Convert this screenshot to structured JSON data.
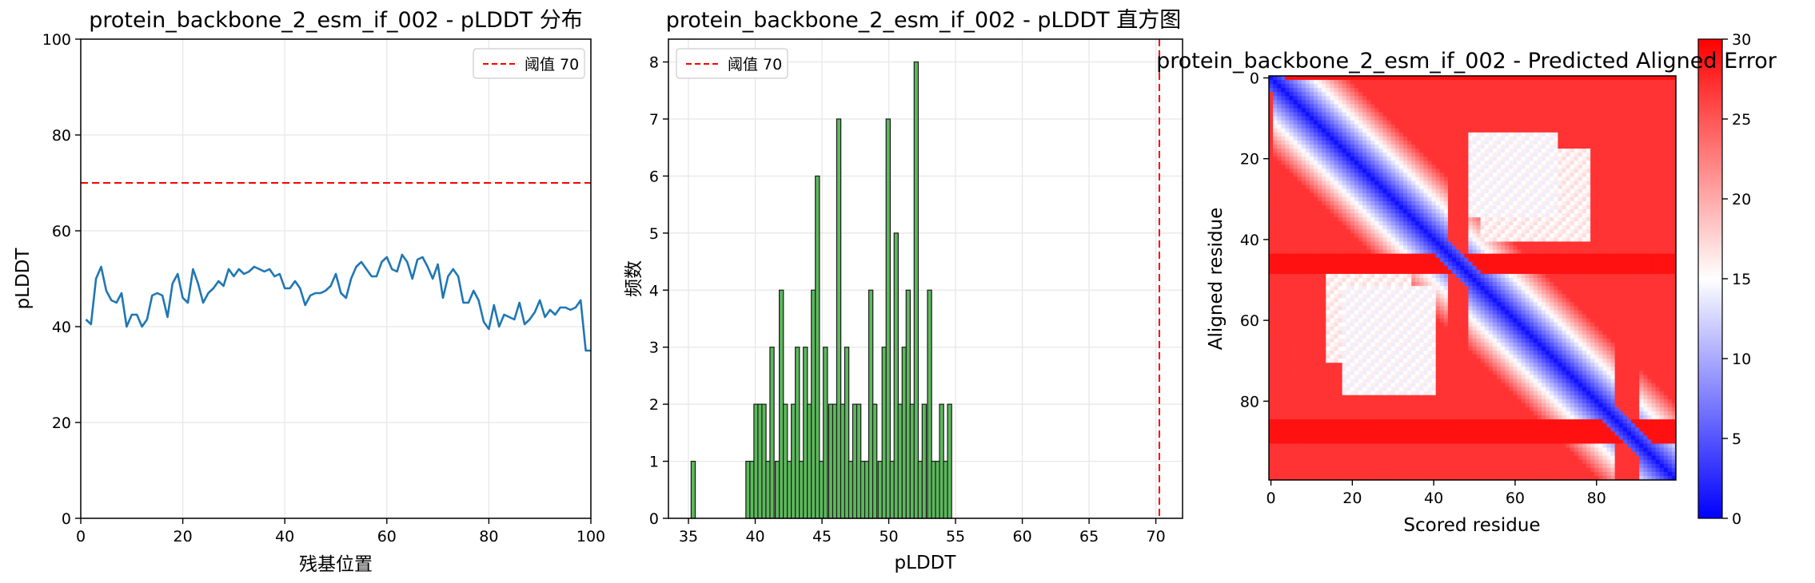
{
  "chart_data": [
    {
      "type": "line",
      "title": "protein_backbone_2_esm_if_002 - pLDDT 分布",
      "xlabel": "残基位置",
      "ylabel": "pLDDT",
      "xlim": [
        0,
        100
      ],
      "ylim": [
        0,
        100
      ],
      "xticks": [
        "0",
        "20",
        "40",
        "60",
        "80",
        "100"
      ],
      "yticks": [
        "0",
        "20",
        "40",
        "60",
        "80",
        "100"
      ],
      "grid": true,
      "legend_position": "top-right",
      "series": [
        {
          "color": "#1f77b4",
          "x": [
            1,
            2,
            3,
            4,
            5,
            6,
            7,
            8,
            9,
            10,
            11,
            12,
            13,
            14,
            15,
            16,
            17,
            18,
            19,
            20,
            21,
            22,
            23,
            24,
            25,
            26,
            27,
            28,
            29,
            30,
            31,
            32,
            33,
            34,
            35,
            36,
            37,
            38,
            39,
            40,
            41,
            42,
            43,
            44,
            45,
            46,
            47,
            48,
            49,
            50,
            51,
            52,
            53,
            54,
            55,
            56,
            57,
            58,
            59,
            60,
            61,
            62,
            63,
            64,
            65,
            66,
            67,
            68,
            69,
            70,
            71,
            72,
            73,
            74,
            75,
            76,
            77,
            78,
            79,
            80,
            81,
            82,
            83,
            84,
            85,
            86,
            87,
            88,
            89,
            90,
            91,
            92,
            93,
            94,
            95,
            96,
            97,
            98,
            99,
            100
          ],
          "values": [
            41.5,
            40.5,
            50.0,
            52.5,
            47.5,
            45.5,
            45.0,
            47.0,
            40.0,
            42.5,
            42.5,
            40.0,
            41.5,
            46.5,
            47.0,
            46.5,
            42.0,
            49.0,
            51.0,
            46.0,
            45.0,
            52.0,
            49.0,
            45.0,
            47.0,
            48.0,
            49.5,
            48.5,
            52.0,
            50.5,
            52.0,
            51.0,
            51.5,
            52.5,
            52.0,
            51.5,
            52.0,
            50.5,
            51.0,
            48.0,
            48.0,
            49.5,
            48.0,
            44.5,
            46.5,
            47.0,
            47.0,
            47.5,
            48.5,
            51.0,
            47.0,
            46.0,
            50.0,
            52.5,
            53.5,
            52.0,
            50.5,
            50.5,
            53.5,
            54.5,
            52.0,
            51.5,
            55.0,
            53.5,
            50.0,
            54.0,
            54.5,
            52.5,
            50.0,
            53.0,
            46.0,
            50.5,
            52.0,
            50.5,
            45.0,
            45.0,
            47.5,
            45.5,
            41.0,
            39.5,
            44.5,
            40.0,
            42.5,
            42.0,
            41.5,
            45.0,
            40.5,
            41.5,
            43.0,
            45.5,
            42.0,
            43.5,
            42.5,
            44.0,
            44.0,
            43.5,
            44.0,
            45.5,
            35.0,
            35.0
          ]
        }
      ],
      "reference_line": {
        "y": 70,
        "color": "#ff0000",
        "style": "dashed",
        "label": "阈值 70"
      }
    },
    {
      "type": "bar",
      "title": "protein_backbone_2_esm_if_002 - pLDDT 直方图",
      "xlabel": "pLDDT",
      "ylabel": "频数",
      "xlim": [
        33.5,
        72
      ],
      "ylim": [
        0,
        8.4
      ],
      "xticks": [
        "35",
        "40",
        "45",
        "50",
        "55",
        "60",
        "65",
        "70"
      ],
      "yticks": [
        "0",
        "1",
        "2",
        "3",
        "4",
        "5",
        "6",
        "7",
        "8"
      ],
      "grid": true,
      "legend_position": "top-left",
      "bin_width": 0.31,
      "bar_color": "#5cb85c",
      "bins": [
        35.2,
        39.3,
        39.6,
        39.9,
        40.2,
        40.5,
        40.8,
        41.1,
        41.5,
        41.8,
        42.1,
        42.4,
        42.7,
        43.0,
        43.3,
        43.6,
        43.9,
        44.2,
        44.5,
        44.8,
        45.1,
        45.5,
        45.8,
        46.1,
        46.4,
        46.7,
        47.0,
        47.3,
        47.6,
        47.9,
        48.2,
        48.5,
        48.8,
        49.2,
        49.5,
        49.8,
        50.1,
        50.4,
        50.7,
        51.0,
        51.3,
        51.6,
        51.9,
        52.2,
        52.5,
        52.9,
        53.2,
        53.5,
        53.8,
        54.1,
        54.4,
        54.7
      ],
      "values": [
        1,
        1,
        1,
        2,
        2,
        2,
        1,
        3,
        1,
        4,
        2,
        1,
        2,
        3,
        1,
        3,
        2,
        4,
        6,
        1,
        3,
        2,
        2,
        7,
        2,
        3,
        1,
        2,
        2,
        1,
        1,
        4,
        2,
        1,
        3,
        7,
        1,
        5,
        2,
        3,
        4,
        2,
        8,
        1,
        2,
        4,
        1,
        1,
        2,
        1,
        2,
        0
      ],
      "reference_line": {
        "x": 70,
        "color": "#ff0000",
        "style": "dashed",
        "label": "阈值 70"
      }
    },
    {
      "type": "heatmap",
      "title": "protein_backbone_2_esm_if_002 - Predicted Aligned Error",
      "xlabel": "Scored residue",
      "ylabel": "Aligned residue",
      "xticks": [
        "0",
        "20",
        "40",
        "60",
        "80"
      ],
      "yticks": [
        "0",
        "20",
        "40",
        "60",
        "80"
      ],
      "n_residues": 100,
      "colormap": "bwr",
      "colorbar": {
        "min": 0,
        "max": 30,
        "ticks": [
          "0",
          "5",
          "10",
          "15",
          "20",
          "25",
          "30"
        ]
      },
      "pattern": {
        "diagonal_width": 9,
        "high_error_rows": [
          0,
          44,
          45,
          46,
          47,
          48,
          85,
          86,
          87,
          88,
          89,
          90
        ],
        "moderate_regions": [
          {
            "rows": [
              14,
              34
            ],
            "cols": [
              48,
              70
            ],
            "pae": 14
          },
          {
            "rows": [
              52,
              78
            ],
            "cols": [
              18,
              40
            ],
            "pae": 14
          }
        ],
        "background_pae": 27
      }
    }
  ]
}
